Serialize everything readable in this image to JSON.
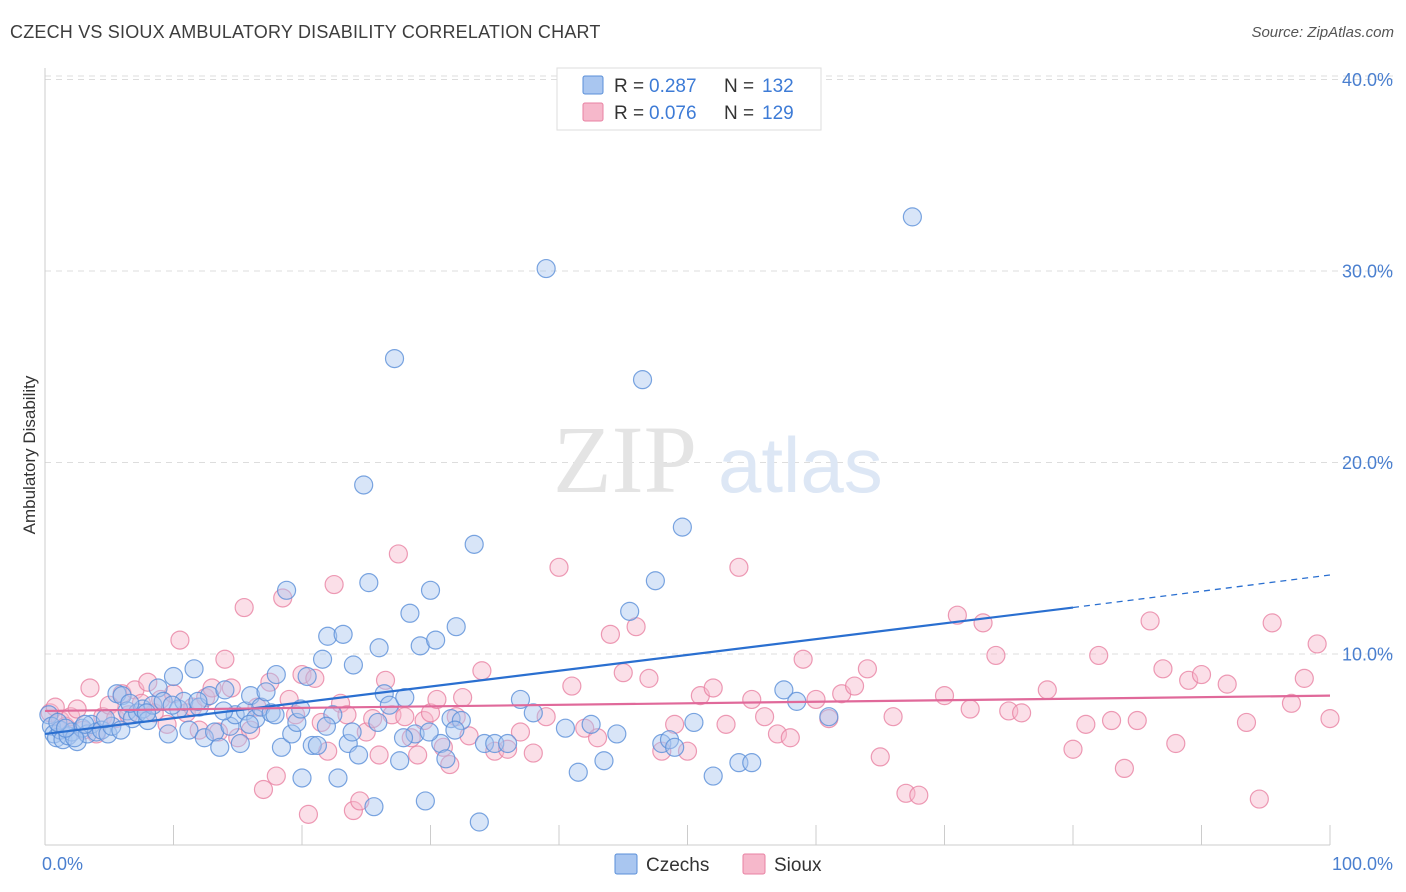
{
  "title": "CZECH VS SIOUX AMBULATORY DISABILITY CORRELATION CHART",
  "source": "Source: ZipAtlas.com",
  "watermark": {
    "zip": "ZIP",
    "atlas": "atlas"
  },
  "legend": {
    "rows": [
      {
        "r_label": "R = ",
        "r_value": "0.287",
        "n_label": "N = ",
        "n_value": "132"
      },
      {
        "r_label": "R = ",
        "r_value": "0.076",
        "n_label": "N = ",
        "n_value": "129"
      }
    ]
  },
  "colors": {
    "czechs_fill": "#a9c6f0",
    "czechs_stroke": "#5a8fd8",
    "czechs_line": "#2a6fd0",
    "sioux_fill": "#f6b8cb",
    "sioux_stroke": "#e882a3",
    "sioux_line": "#e0699a",
    "grid": "#dddddd",
    "tick_text": "#4a7fcf"
  },
  "chart_data": {
    "type": "scatter",
    "ylabel": "Ambulatory Disability",
    "xlim": [
      0,
      100
    ],
    "ylim": [
      0,
      40
    ],
    "x_ticks": [
      {
        "v": 0,
        "label": "0.0%"
      },
      {
        "v": 100,
        "label": "100.0%"
      }
    ],
    "y_ticks": [
      {
        "v": 10,
        "label": "10.0%"
      },
      {
        "v": 20,
        "label": "20.0%"
      },
      {
        "v": 30,
        "label": "30.0%"
      },
      {
        "v": 40,
        "label": "40.0%"
      }
    ],
    "grid": "horizontal dashed",
    "series": [
      {
        "name": "Czechs",
        "trend": {
          "x0": 0,
          "y0": 5.8,
          "x1": 80,
          "y1": 12.4,
          "dash_to_x": 100,
          "dash_to_y": 14.1
        },
        "points": [
          [
            0.3,
            6.8
          ],
          [
            0.5,
            6.2
          ],
          [
            0.7,
            5.8
          ],
          [
            0.9,
            5.6
          ],
          [
            1.2,
            6.0
          ],
          [
            1.4,
            5.5
          ],
          [
            1.8,
            5.7
          ],
          [
            2.1,
            5.9
          ],
          [
            2.5,
            5.4
          ],
          [
            2.9,
            6.1
          ],
          [
            3.3,
            5.8
          ],
          [
            3.6,
            6.3
          ],
          [
            4.0,
            5.9
          ],
          [
            4.4,
            6.0
          ],
          [
            4.9,
            5.8
          ],
          [
            5.2,
            6.2
          ],
          [
            5.6,
            7.9
          ],
          [
            6.0,
            7.8
          ],
          [
            6.4,
            7.0
          ],
          [
            6.8,
            6.6
          ],
          [
            7.2,
            6.9
          ],
          [
            7.6,
            7.1
          ],
          [
            8.0,
            6.5
          ],
          [
            8.4,
            7.3
          ],
          [
            8.8,
            8.2
          ],
          [
            9.2,
            7.5
          ],
          [
            9.6,
            5.8
          ],
          [
            10.0,
            8.8
          ],
          [
            10.4,
            7.1
          ],
          [
            10.8,
            7.5
          ],
          [
            11.2,
            6.0
          ],
          [
            11.6,
            9.2
          ],
          [
            12.0,
            7.2
          ],
          [
            12.4,
            5.6
          ],
          [
            12.8,
            7.8
          ],
          [
            13.2,
            5.9
          ],
          [
            13.6,
            5.1
          ],
          [
            14.0,
            8.1
          ],
          [
            14.4,
            6.2
          ],
          [
            14.8,
            6.8
          ],
          [
            15.2,
            5.3
          ],
          [
            15.6,
            7.0
          ],
          [
            16.0,
            7.8
          ],
          [
            16.4,
            6.6
          ],
          [
            16.8,
            7.2
          ],
          [
            17.2,
            8.0
          ],
          [
            17.6,
            6.9
          ],
          [
            18.0,
            8.9
          ],
          [
            18.4,
            5.1
          ],
          [
            18.8,
            13.3
          ],
          [
            19.2,
            5.8
          ],
          [
            19.6,
            6.4
          ],
          [
            20.0,
            3.5
          ],
          [
            20.4,
            8.8
          ],
          [
            20.8,
            5.2
          ],
          [
            21.2,
            5.2
          ],
          [
            21.6,
            9.7
          ],
          [
            22.0,
            10.9
          ],
          [
            22.4,
            6.8
          ],
          [
            22.8,
            3.5
          ],
          [
            23.2,
            11.0
          ],
          [
            23.6,
            5.3
          ],
          [
            24.0,
            9.4
          ],
          [
            24.4,
            4.7
          ],
          [
            24.8,
            18.8
          ],
          [
            25.2,
            13.7
          ],
          [
            25.6,
            2.0
          ],
          [
            26.0,
            10.3
          ],
          [
            26.4,
            7.9
          ],
          [
            26.8,
            7.3
          ],
          [
            27.2,
            25.4
          ],
          [
            27.6,
            4.4
          ],
          [
            28.0,
            7.7
          ],
          [
            28.4,
            12.1
          ],
          [
            28.8,
            5.8
          ],
          [
            29.2,
            10.4
          ],
          [
            29.6,
            2.3
          ],
          [
            30.0,
            13.3
          ],
          [
            30.4,
            10.7
          ],
          [
            30.8,
            5.3
          ],
          [
            31.2,
            4.5
          ],
          [
            31.6,
            6.6
          ],
          [
            32.0,
            11.4
          ],
          [
            32.4,
            6.5
          ],
          [
            33.4,
            15.7
          ],
          [
            33.8,
            1.2
          ],
          [
            34.2,
            5.3
          ],
          [
            35.0,
            5.3
          ],
          [
            36.0,
            5.3
          ],
          [
            37.0,
            7.6
          ],
          [
            38.0,
            6.9
          ],
          [
            39.0,
            30.1
          ],
          [
            40.5,
            6.1
          ],
          [
            41.5,
            3.8
          ],
          [
            42.5,
            6.3
          ],
          [
            43.5,
            4.4
          ],
          [
            44.5,
            5.8
          ],
          [
            45.5,
            12.2
          ],
          [
            46.5,
            24.3
          ],
          [
            47.5,
            13.8
          ],
          [
            48.0,
            5.3
          ],
          [
            48.6,
            5.5
          ],
          [
            49.0,
            5.1
          ],
          [
            49.6,
            16.6
          ],
          [
            50.5,
            6.4
          ],
          [
            52.0,
            3.6
          ],
          [
            54.0,
            4.3
          ],
          [
            55.0,
            4.3
          ],
          [
            57.5,
            8.1
          ],
          [
            58.5,
            7.5
          ],
          [
            61.0,
            6.7
          ],
          [
            67.5,
            32.8
          ],
          [
            2.3,
            5.6
          ],
          [
            3.1,
            6.3
          ],
          [
            5.9,
            6.0
          ],
          [
            7.9,
            6.9
          ],
          [
            9.9,
            7.3
          ],
          [
            11.9,
            7.5
          ],
          [
            13.9,
            7.0
          ],
          [
            15.9,
            6.3
          ],
          [
            17.9,
            6.8
          ],
          [
            19.9,
            7.1
          ],
          [
            21.9,
            6.2
          ],
          [
            23.9,
            5.9
          ],
          [
            25.9,
            6.4
          ],
          [
            27.9,
            5.6
          ],
          [
            29.9,
            5.9
          ],
          [
            31.9,
            6.0
          ],
          [
            1.0,
            6.4
          ],
          [
            1.6,
            6.1
          ],
          [
            4.7,
            6.6
          ],
          [
            6.6,
            7.4
          ]
        ]
      },
      {
        "name": "Sioux",
        "trend": {
          "x0": 0,
          "y0": 7.0,
          "x1": 100,
          "y1": 7.8
        },
        "points": [
          [
            0.4,
            6.9
          ],
          [
            0.8,
            7.2
          ],
          [
            1.2,
            6.5
          ],
          [
            1.6,
            6.2
          ],
          [
            2.0,
            6.7
          ],
          [
            2.5,
            7.1
          ],
          [
            3.0,
            6.0
          ],
          [
            3.5,
            8.2
          ],
          [
            4.0,
            5.8
          ],
          [
            4.5,
            6.7
          ],
          [
            5.0,
            7.3
          ],
          [
            5.5,
            6.6
          ],
          [
            6.0,
            7.9
          ],
          [
            6.5,
            6.8
          ],
          [
            7.0,
            8.1
          ],
          [
            7.5,
            7.4
          ],
          [
            8.0,
            8.5
          ],
          [
            8.5,
            6.9
          ],
          [
            9.0,
            7.6
          ],
          [
            9.5,
            6.3
          ],
          [
            10.0,
            7.9
          ],
          [
            10.5,
            10.7
          ],
          [
            11.0,
            6.9
          ],
          [
            11.5,
            7.2
          ],
          [
            12.0,
            6.0
          ],
          [
            12.5,
            7.7
          ],
          [
            13.0,
            8.2
          ],
          [
            13.5,
            5.9
          ],
          [
            14.0,
            9.7
          ],
          [
            14.5,
            8.2
          ],
          [
            15.0,
            5.6
          ],
          [
            15.5,
            12.4
          ],
          [
            16.0,
            6.0
          ],
          [
            16.5,
            7.2
          ],
          [
            17.0,
            2.9
          ],
          [
            17.5,
            8.5
          ],
          [
            18.0,
            3.6
          ],
          [
            18.5,
            12.9
          ],
          [
            19.0,
            7.6
          ],
          [
            19.5,
            6.8
          ],
          [
            20.0,
            8.9
          ],
          [
            20.5,
            1.6
          ],
          [
            21.0,
            8.7
          ],
          [
            21.5,
            6.4
          ],
          [
            22.0,
            4.9
          ],
          [
            22.5,
            13.6
          ],
          [
            23.0,
            7.4
          ],
          [
            23.5,
            6.8
          ],
          [
            24.0,
            1.8
          ],
          [
            24.5,
            2.3
          ],
          [
            25.0,
            5.9
          ],
          [
            25.5,
            6.6
          ],
          [
            26.0,
            4.7
          ],
          [
            26.5,
            8.6
          ],
          [
            27.0,
            6.8
          ],
          [
            27.5,
            15.2
          ],
          [
            28.0,
            6.7
          ],
          [
            28.5,
            5.6
          ],
          [
            29.0,
            4.7
          ],
          [
            29.5,
            6.5
          ],
          [
            30.0,
            6.9
          ],
          [
            30.5,
            7.6
          ],
          [
            31.0,
            5.1
          ],
          [
            31.5,
            4.2
          ],
          [
            32.0,
            6.7
          ],
          [
            32.5,
            7.7
          ],
          [
            33.0,
            5.7
          ],
          [
            34.0,
            9.1
          ],
          [
            35.0,
            4.9
          ],
          [
            36.0,
            5.0
          ],
          [
            37.0,
            5.9
          ],
          [
            38.0,
            4.8
          ],
          [
            39.0,
            6.7
          ],
          [
            40.0,
            14.5
          ],
          [
            41.0,
            8.3
          ],
          [
            42.0,
            6.1
          ],
          [
            43.0,
            5.6
          ],
          [
            44.0,
            11.0
          ],
          [
            45.0,
            9.0
          ],
          [
            46.0,
            11.4
          ],
          [
            47.0,
            8.7
          ],
          [
            48.0,
            4.9
          ],
          [
            49.0,
            6.3
          ],
          [
            50.0,
            4.9
          ],
          [
            51.0,
            7.8
          ],
          [
            52.0,
            8.2
          ],
          [
            53.0,
            6.3
          ],
          [
            54.0,
            14.5
          ],
          [
            55.0,
            7.6
          ],
          [
            56.0,
            6.7
          ],
          [
            57.0,
            5.8
          ],
          [
            58.0,
            5.6
          ],
          [
            59.0,
            9.7
          ],
          [
            60.0,
            7.6
          ],
          [
            61.0,
            6.6
          ],
          [
            62.0,
            7.9
          ],
          [
            63.0,
            8.3
          ],
          [
            64.0,
            9.2
          ],
          [
            65.0,
            4.6
          ],
          [
            66.0,
            6.7
          ],
          [
            67.0,
            2.7
          ],
          [
            68.0,
            2.6
          ],
          [
            70.0,
            7.8
          ],
          [
            71.0,
            12.0
          ],
          [
            72.0,
            7.1
          ],
          [
            73.0,
            11.6
          ],
          [
            74.0,
            9.9
          ],
          [
            75.0,
            7.0
          ],
          [
            76.0,
            6.9
          ],
          [
            78.0,
            8.1
          ],
          [
            80.0,
            5.0
          ],
          [
            81.0,
            6.3
          ],
          [
            82.0,
            9.9
          ],
          [
            83.0,
            6.5
          ],
          [
            84.0,
            4.0
          ],
          [
            85.0,
            6.5
          ],
          [
            86.0,
            11.7
          ],
          [
            87.0,
            9.2
          ],
          [
            88.0,
            5.3
          ],
          [
            89.0,
            8.6
          ],
          [
            90.0,
            8.9
          ],
          [
            92.0,
            8.4
          ],
          [
            93.5,
            6.4
          ],
          [
            94.5,
            2.4
          ],
          [
            95.5,
            11.6
          ],
          [
            97.0,
            7.4
          ],
          [
            98.0,
            8.7
          ],
          [
            99.0,
            10.5
          ],
          [
            100.0,
            6.6
          ]
        ]
      }
    ],
    "bottom_legend": [
      "Czechs",
      "Sioux"
    ]
  }
}
